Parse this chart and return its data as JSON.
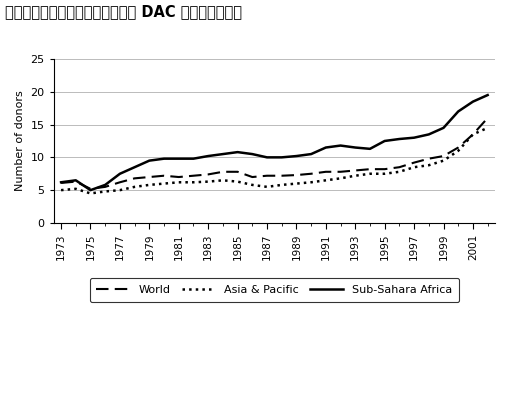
{
  "title": "図１：各被援助国における二国間 DAC ドナー数の平均",
  "ylabel": "Number of donors",
  "ylim": [
    0,
    25
  ],
  "yticks": [
    0,
    5,
    10,
    15,
    20,
    25
  ],
  "years": [
    1973,
    1974,
    1975,
    1976,
    1977,
    1978,
    1979,
    1980,
    1981,
    1982,
    1983,
    1984,
    1985,
    1986,
    1987,
    1988,
    1989,
    1990,
    1991,
    1992,
    1993,
    1994,
    1995,
    1996,
    1997,
    1998,
    1999,
    2000,
    2001,
    2002
  ],
  "world": [
    6.1,
    6.3,
    5.2,
    5.5,
    6.2,
    6.8,
    7.0,
    7.2,
    7.0,
    7.2,
    7.4,
    7.8,
    7.8,
    7.0,
    7.2,
    7.2,
    7.3,
    7.5,
    7.8,
    7.8,
    8.0,
    8.2,
    8.2,
    8.5,
    9.2,
    9.8,
    10.2,
    11.5,
    13.5,
    16.0
  ],
  "asia_pacific": [
    5.0,
    5.2,
    4.5,
    4.8,
    5.0,
    5.5,
    5.8,
    6.0,
    6.2,
    6.2,
    6.3,
    6.5,
    6.3,
    5.8,
    5.5,
    5.8,
    6.0,
    6.2,
    6.5,
    6.8,
    7.2,
    7.5,
    7.5,
    7.8,
    8.5,
    8.8,
    9.5,
    11.0,
    13.5,
    14.5
  ],
  "sub_sahara": [
    6.2,
    6.5,
    5.0,
    5.8,
    7.5,
    8.5,
    9.5,
    9.8,
    9.8,
    9.8,
    10.2,
    10.5,
    10.8,
    10.5,
    10.0,
    10.0,
    10.2,
    10.5,
    11.5,
    11.8,
    11.5,
    11.3,
    12.5,
    12.8,
    13.0,
    13.5,
    14.5,
    17.0,
    18.5,
    19.5
  ],
  "legend_labels": [
    "World",
    "Asia & Pacific",
    "Sub-Sahara Africa"
  ],
  "background_color": "#ffffff",
  "grid_color": "#bbbbbb"
}
